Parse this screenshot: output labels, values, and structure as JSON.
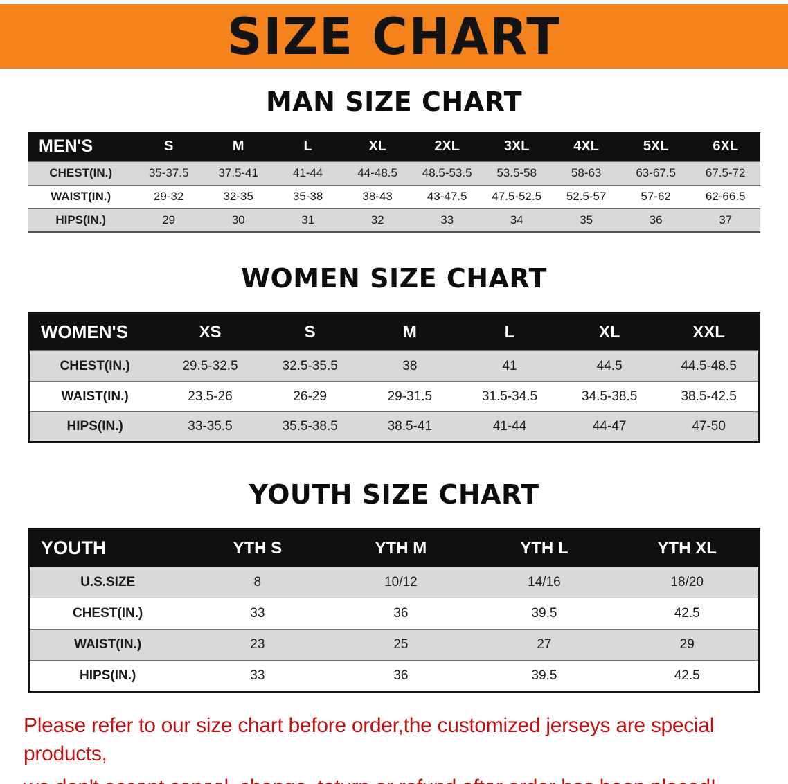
{
  "banner": {
    "title": "SIZE CHART",
    "bg_color": "#F5831D"
  },
  "man": {
    "heading": "MAN SIZE CHART",
    "header": [
      "MEN'S",
      "S",
      "M",
      "L",
      "XL",
      "2XL",
      "3XL",
      "4XL",
      "5XL",
      "6XL"
    ],
    "rows": [
      {
        "label": "CHEST(IN.)",
        "values": [
          "35-37.5",
          "37.5-41",
          "41-44",
          "44-48.5",
          "48.5-53.5",
          "53.5-58",
          "58-63",
          "63-67.5",
          "67.5-72"
        ]
      },
      {
        "label": "WAIST(IN.)",
        "values": [
          "29-32",
          "32-35",
          "35-38",
          "38-43",
          "43-47.5",
          "47.5-52.5",
          "52.5-57",
          "57-62",
          "62-66.5"
        ]
      },
      {
        "label": "HIPS(IN.)",
        "values": [
          "29",
          "30",
          "31",
          "32",
          "33",
          "34",
          "35",
          "36",
          "37"
        ]
      }
    ]
  },
  "women": {
    "heading": "WOMEN SIZE CHART",
    "header": [
      "WOMEN'S",
      "XS",
      "S",
      "M",
      "L",
      "XL",
      "XXL"
    ],
    "rows": [
      {
        "label": "CHEST(IN.)",
        "values": [
          "29.5-32.5",
          "32.5-35.5",
          "38",
          "41",
          "44.5",
          "44.5-48.5"
        ]
      },
      {
        "label": "WAIST(IN.)",
        "values": [
          "23.5-26",
          "26-29",
          "29-31.5",
          "31.5-34.5",
          "34.5-38.5",
          "38.5-42.5"
        ]
      },
      {
        "label": "HIPS(IN.)",
        "values": [
          "33-35.5",
          "35.5-38.5",
          "38.5-41",
          "41-44",
          "44-47",
          "47-50"
        ]
      }
    ]
  },
  "youth": {
    "heading": "YOUTH SIZE CHART",
    "header": [
      "YOUTH",
      "YTH S",
      "YTH M",
      "YTH L",
      "YTH XL"
    ],
    "rows": [
      {
        "label": "U.S.SIZE",
        "values": [
          "8",
          "10/12",
          "14/16",
          "18/20"
        ]
      },
      {
        "label": "CHEST(IN.)",
        "values": [
          "33",
          "36",
          "39.5",
          "42.5"
        ]
      },
      {
        "label": "WAIST(IN.)",
        "values": [
          "23",
          "25",
          "27",
          "29"
        ]
      },
      {
        "label": "HIPS(IN.)",
        "values": [
          "33",
          "36",
          "39.5",
          "42.5"
        ]
      }
    ]
  },
  "footer": {
    "line1": "Please refer to our size chart before order,the customized jerseys are special products,",
    "line2": "we don't accept cancel, change, teturn or refund after order has been placed!"
  }
}
